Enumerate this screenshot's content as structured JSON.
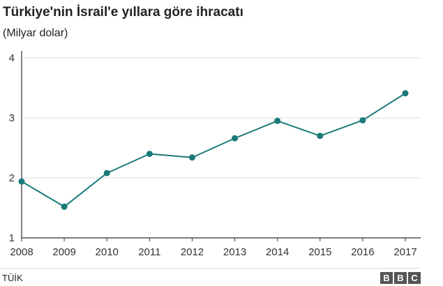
{
  "header": {
    "title": "Türkiye'nin İsrail'e yıllara göre ihracatı",
    "subtitle": "(Milyar dolar)"
  },
  "footer": {
    "source": "TÜİK",
    "logo_letters": [
      "B",
      "B",
      "C"
    ]
  },
  "colors": {
    "line": "#1a7a78",
    "grid": "#dcdcdc",
    "axis": "#333333"
  },
  "chart_data": {
    "type": "line",
    "x": [
      "2008",
      "2009",
      "2010",
      "2011",
      "2012",
      "2013",
      "2014",
      "2015",
      "2016",
      "2017"
    ],
    "series": [
      {
        "values": [
          1.94,
          1.52,
          2.08,
          2.4,
          2.34,
          2.66,
          2.95,
          2.7,
          2.96,
          3.41
        ]
      }
    ],
    "yticks": [
      1,
      2,
      3,
      4
    ],
    "ylim": [
      1,
      4
    ],
    "grid": true,
    "legend": "none"
  }
}
